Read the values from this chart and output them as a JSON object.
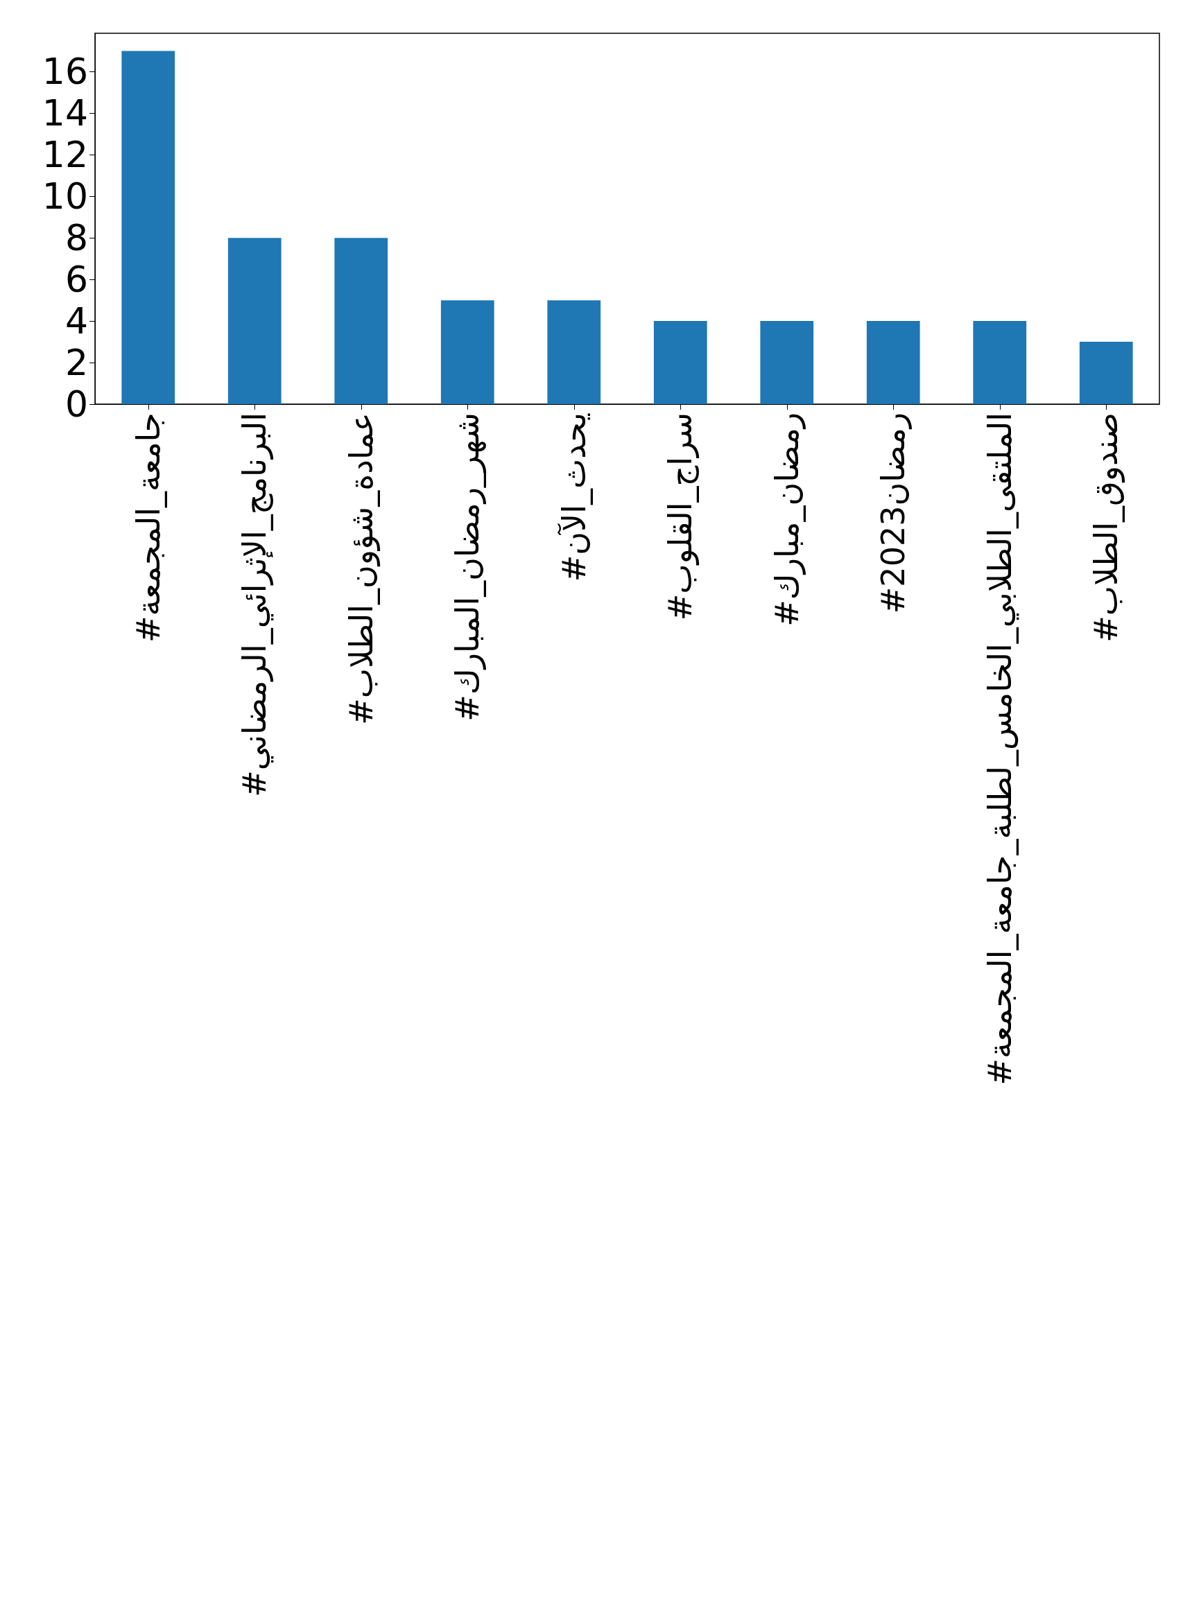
{
  "chart_data": {
    "type": "bar",
    "categories": [
      "#جامعة_المجمعة",
      "#البرنامج_الإثرائي_الرمضاني",
      "#عمادة_شؤون_الطلاب",
      "#شهر_رمضان_المبارك",
      "#يحدث_الآن",
      "#سراج_القلوب",
      "#رمضان_مبارك",
      "#رمضان2023",
      "#الملتقى_الطلابي_الخامس_لطلبة_جامعة_المجمعة",
      "#صندوق_الطلاب"
    ],
    "values": [
      17,
      8,
      8,
      5,
      5,
      4,
      4,
      4,
      4,
      3
    ],
    "color": "#1f77b4",
    "ylim": [
      0,
      17.85
    ],
    "yticks": [
      0,
      2,
      4,
      6,
      8,
      10,
      12,
      14,
      16
    ],
    "grid": false
  }
}
